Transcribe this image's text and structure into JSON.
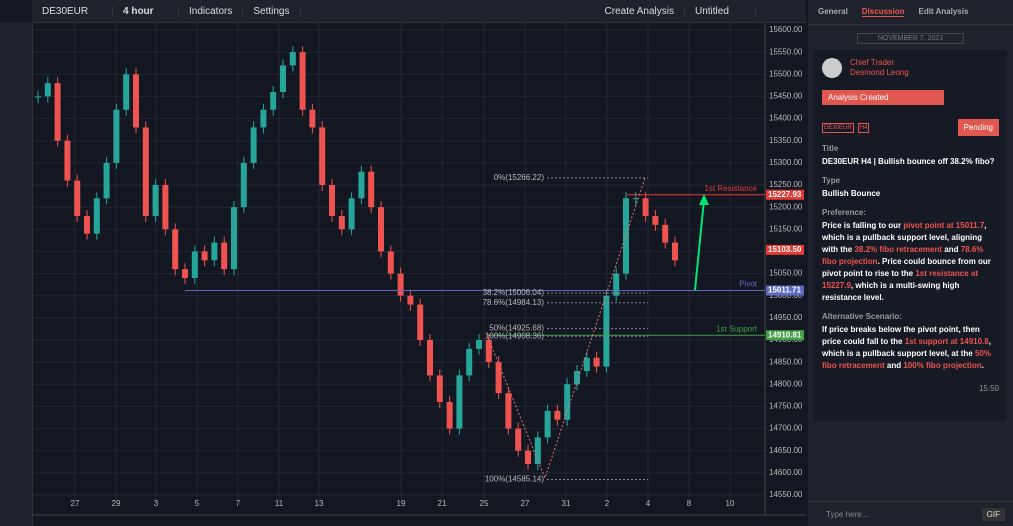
{
  "toolbar": {
    "symbol": "DE30EUR",
    "interval": "4 hour",
    "indicators": "Indicators",
    "settings": "Settings",
    "create": "Create Analysis",
    "layout": "Untitled"
  },
  "chart": {
    "ylim": [
      14550,
      15600
    ],
    "yticks": [
      {
        "value": 15600,
        "label": "15600.00"
      },
      {
        "value": 15550,
        "label": "15550.00"
      },
      {
        "value": 15500,
        "label": "15500.00"
      },
      {
        "value": 15450,
        "label": "15450.00"
      },
      {
        "value": 15400,
        "label": "15400.00"
      },
      {
        "value": 15350,
        "label": "15350.00"
      },
      {
        "value": 15300,
        "label": "15300.00"
      },
      {
        "value": 15250,
        "label": "15250.00"
      },
      {
        "value": 15200,
        "label": "15200.00"
      },
      {
        "value": 15150,
        "label": "15150.00"
      },
      {
        "value": 15100,
        "label": "15100.00"
      },
      {
        "value": 15050,
        "label": "15050.00"
      },
      {
        "value": 15000,
        "label": "15000.00"
      },
      {
        "value": 14950,
        "label": "14950.00"
      },
      {
        "value": 14900,
        "label": "14900.00"
      },
      {
        "value": 14850,
        "label": "14850.00"
      },
      {
        "value": 14800,
        "label": "14800.00"
      },
      {
        "value": 14750,
        "label": "14750.00"
      },
      {
        "value": 14700,
        "label": "14700.00"
      },
      {
        "value": 14650,
        "label": "14650.00"
      },
      {
        "value": 14600,
        "label": "14600.00"
      },
      {
        "value": 14550,
        "label": "14550.00"
      }
    ],
    "dates": [
      "27",
      "29",
      "3",
      "5",
      "7",
      "11",
      "13",
      "19",
      "21",
      "25",
      "27",
      "31",
      "2",
      "4",
      "8",
      "10"
    ],
    "closes": [
      15450,
      15480,
      15350,
      15260,
      15180,
      15140,
      15220,
      15300,
      15420,
      15500,
      15380,
      15180,
      15250,
      15150,
      15060,
      15040,
      15100,
      15080,
      15120,
      15060,
      15200,
      15300,
      15380,
      15420,
      15460,
      15520,
      15550,
      15420,
      15380,
      15250,
      15180,
      15150,
      15220,
      15280,
      15200,
      15100,
      15050,
      15000,
      14980,
      14900,
      14820,
      14760,
      14700,
      14820,
      14880,
      14900,
      14850,
      14780,
      14700,
      14650,
      14620,
      14680,
      14740,
      14720,
      14800,
      14830,
      14860,
      14840,
      15000,
      15050,
      15220,
      15220,
      15180,
      15160,
      15120,
      15080
    ],
    "levels": [
      {
        "name": "1st Resistance",
        "value": 15227.93,
        "label": "15227.93",
        "color": "#e53935"
      },
      {
        "name": "Pivot",
        "value": 15011.71,
        "label": "15011.71",
        "color": "#5c6bc0"
      },
      {
        "name": "1st Support",
        "value": 14910.81,
        "label": "14910.81",
        "color": "#43a047"
      }
    ],
    "last": {
      "value": 15103.5,
      "label": "15103.50"
    },
    "fibs": [
      {
        "label": "0%(15266.22)",
        "value": 15266.22
      },
      {
        "label": "38.2%(15006.04)",
        "value": 15006.04
      },
      {
        "label": "78.6%(14984.13)",
        "value": 14984.13
      },
      {
        "label": "50%(14925.68)",
        "value": 14925.68
      },
      {
        "label": "100%(14908.36)",
        "value": 14908.36
      },
      {
        "label": "100%(14585.14)",
        "value": 14585.14
      }
    ]
  },
  "panel": {
    "tabs": [
      "General",
      "Discussion",
      "Edit Analysis"
    ],
    "date": "NOVEMBER 7, 2023",
    "role": "Chief Trader",
    "author": "Desmond Leong",
    "status": "Analysis Created",
    "badges": [
      "DE30EUR",
      "H4"
    ],
    "pending": "Pending",
    "title_label": "Title",
    "title": "DE30EUR H4 | Bullish bounce off 38.2% fibo?",
    "type_label": "Type",
    "type": "Bullish Bounce",
    "pref_label": "Preference:",
    "pref": [
      "Price is falling to our ",
      "pivot point at 15011.7",
      ", which is a pullback support level, aligning with the ",
      "38.2% fibo retracement",
      " and ",
      "78.6% fibo projection",
      ". Price could bounce from our pivot point to rise to the ",
      "1st resistance at 15227.9",
      ", which is a multi-swing high resistance level."
    ],
    "alt_label": "Alternative Scenario:",
    "alt": [
      "If price breaks below the pivot point, then price could fall to the ",
      "1st support at 14910.8",
      ", which is a pullback support level, at the ",
      "50% fibo retracement",
      " and ",
      "100% fibo projection",
      "."
    ],
    "time": "15:50",
    "input": "Type here...",
    "gif": "GIF"
  }
}
